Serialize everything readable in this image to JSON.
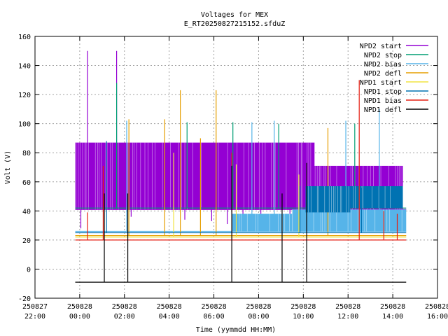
{
  "chart_data": {
    "type": "line",
    "title": "Voltages for MEX",
    "subtitle": "E_RT20250827215152.sfduZ",
    "xlabel": "Time (yymmdd HH:MM)",
    "ylabel": "Volt (V)",
    "xlim": [
      -2,
      16
    ],
    "ylim": [
      -20,
      160
    ],
    "grid": true,
    "legend_position": "top-right",
    "x_ticks": [
      {
        "value": -2,
        "date": "250827",
        "time": "22:00"
      },
      {
        "value": 0,
        "date": "250828",
        "time": "00:00"
      },
      {
        "value": 2,
        "date": "250828",
        "time": "02:00"
      },
      {
        "value": 4,
        "date": "250828",
        "time": "04:00"
      },
      {
        "value": 6,
        "date": "250828",
        "time": "06:00"
      },
      {
        "value": 8,
        "date": "250828",
        "time": "08:00"
      },
      {
        "value": 10,
        "date": "250828",
        "time": "10:00"
      },
      {
        "value": 12,
        "date": "250828",
        "time": "12:00"
      },
      {
        "value": 14,
        "date": "250828",
        "time": "14:00"
      },
      {
        "value": 16,
        "date": "250828",
        "time": "16:00"
      }
    ],
    "y_ticks": [
      "-20",
      "0",
      "20",
      "40",
      "60",
      "80",
      "100",
      "120",
      "140",
      "160"
    ],
    "series": [
      {
        "name": "NPD2 start",
        "color": "#9400d3",
        "bands": [
          {
            "x": [
              -0.2,
              10.5
            ],
            "low": 41,
            "high": 87
          },
          {
            "x": [
              10.5,
              14.45
            ],
            "low": 41,
            "high": 71
          }
        ],
        "spikes": [
          [
            0.35,
            150
          ],
          [
            1.65,
            150
          ]
        ],
        "dips": [
          [
            0.05,
            28
          ],
          [
            2.3,
            36
          ],
          [
            4.7,
            34
          ],
          [
            5.9,
            33
          ],
          [
            6.6,
            31
          ],
          [
            7.3,
            32
          ],
          [
            8.1,
            30
          ],
          [
            9.4,
            35
          ],
          [
            11.2,
            33
          ],
          [
            12.9,
            31
          ]
        ],
        "base": 41
      },
      {
        "name": "NPD2 stop",
        "color": "#009e73",
        "spikes": [
          [
            1.65,
            128
          ],
          [
            4.8,
            101
          ],
          [
            6.85,
            101
          ],
          [
            8.9,
            100
          ],
          [
            12.3,
            100
          ]
        ],
        "base": 42
      },
      {
        "name": "NPD2 bias",
        "color": "#56b4e9",
        "bands": [
          {
            "x": [
              6.8,
              9.5
            ],
            "low": 26,
            "high": 38
          },
          {
            "x": [
              9.5,
              14.6
            ],
            "low": 26,
            "high": 41
          }
        ],
        "spikes": [
          [
            2.1,
            102
          ],
          [
            7.7,
            101
          ],
          [
            8.7,
            102
          ],
          [
            11.9,
            102
          ],
          [
            13.4,
            110
          ]
        ],
        "base": 26
      },
      {
        "name": "NPD2 defl",
        "color": "#e69f00",
        "spikes": [
          [
            2.2,
            103
          ],
          [
            3.8,
            103
          ],
          [
            4.5,
            123
          ],
          [
            5.4,
            90
          ],
          [
            6.1,
            123
          ],
          [
            11.1,
            97
          ]
        ],
        "base": 23
      },
      {
        "name": "NPD1 start",
        "color": "#f0e442",
        "spikes": [
          [
            4.2,
            80
          ],
          [
            7.0,
            72
          ],
          [
            9.8,
            65
          ]
        ],
        "base": 22
      },
      {
        "name": "NPD1 stop",
        "color": "#0072b2",
        "bands": [
          {
            "x": [
              10.1,
              12.1
            ],
            "low": 39,
            "high": 57
          },
          {
            "x": [
              12.1,
              14.45
            ],
            "low": 42,
            "high": 57
          }
        ],
        "spikes": [
          [
            1.2,
            88
          ],
          [
            9.85,
            57
          ],
          [
            12.6,
            56
          ]
        ],
        "base": 25
      },
      {
        "name": "NPD1 bias",
        "color": "#e51e10",
        "spikes": [
          [
            0.35,
            39
          ],
          [
            1.05,
            71
          ],
          [
            12.5,
            130
          ],
          [
            6.8,
            80
          ],
          [
            13.6,
            40
          ],
          [
            14.2,
            38
          ]
        ],
        "base": 20
      },
      {
        "name": "NPD1 defl",
        "color": "#000000",
        "spikes": [
          [
            1.1,
            52
          ],
          [
            2.15,
            52
          ],
          [
            6.8,
            71
          ],
          [
            9.05,
            52
          ],
          [
            10.15,
            73
          ]
        ],
        "base": -9
      }
    ]
  }
}
